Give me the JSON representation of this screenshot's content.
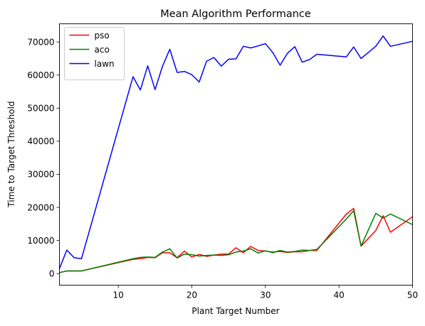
{
  "chart_data": {
    "type": "line",
    "title": "Mean Algorithm Performance",
    "xlabel": "Plant Target Number",
    "ylabel": "Time to Target Threshold",
    "xlim": [
      2,
      50
    ],
    "ylim": [
      -3500,
      75500
    ],
    "xticks": [
      10,
      20,
      30,
      40,
      50
    ],
    "yticks": [
      0,
      10000,
      20000,
      30000,
      40000,
      50000,
      60000,
      70000
    ],
    "legend_position": "top-left",
    "grid": false,
    "series": [
      {
        "name": "pso",
        "color": "#ff0000",
        "x": [
          2,
          3,
          4,
          5,
          12,
          13,
          14,
          15,
          16,
          17,
          18,
          19,
          20,
          21,
          22,
          23,
          24,
          25,
          26,
          27,
          28,
          29,
          30,
          31,
          32,
          33,
          34,
          35,
          36,
          37,
          41,
          42,
          43,
          45,
          46,
          47,
          50
        ],
        "y": [
          300,
          800,
          800,
          800,
          4300,
          4500,
          4900,
          4800,
          6300,
          6300,
          4800,
          6800,
          5000,
          5800,
          5200,
          5600,
          5900,
          5900,
          7800,
          6300,
          8200,
          7000,
          6800,
          6500,
          6700,
          6400,
          6600,
          6600,
          7000,
          7000,
          18000,
          19700,
          8300,
          13000,
          17500,
          12500,
          17200
        ]
      },
      {
        "name": "aco",
        "color": "#008000",
        "x": [
          2,
          3,
          4,
          5,
          12,
          13,
          14,
          15,
          16,
          17,
          18,
          19,
          20,
          21,
          22,
          23,
          24,
          25,
          26,
          27,
          28,
          29,
          30,
          31,
          32,
          33,
          34,
          35,
          36,
          37,
          41,
          42,
          43,
          45,
          46,
          47,
          50
        ],
        "y": [
          300,
          800,
          800,
          800,
          4500,
          4900,
          5000,
          4900,
          6500,
          7500,
          4700,
          5900,
          5700,
          5300,
          5500,
          5600,
          5500,
          5700,
          6500,
          6800,
          7500,
          6200,
          6900,
          6300,
          7000,
          6500,
          6700,
          7100,
          7000,
          7300,
          16500,
          19000,
          8300,
          18200,
          16800,
          18000,
          14800
        ]
      },
      {
        "name": "lawn",
        "color": "#0000ff",
        "x": [
          2,
          3,
          4,
          5,
          12,
          13,
          14,
          15,
          16,
          17,
          18,
          19,
          20,
          21,
          22,
          23,
          24,
          25,
          26,
          27,
          28,
          29,
          30,
          31,
          32,
          33,
          34,
          35,
          36,
          37,
          41,
          42,
          43,
          45,
          46,
          47,
          50
        ],
        "y": [
          1500,
          7100,
          4800,
          4500,
          59500,
          55500,
          62800,
          55600,
          62600,
          67800,
          60800,
          61100,
          60100,
          57900,
          64200,
          65300,
          62700,
          64800,
          64900,
          68700,
          68200,
          68800,
          69500,
          66800,
          63000,
          66600,
          68600,
          63900,
          64700,
          66300,
          65500,
          68500,
          65000,
          68700,
          71800,
          68700,
          70200
        ]
      }
    ]
  }
}
